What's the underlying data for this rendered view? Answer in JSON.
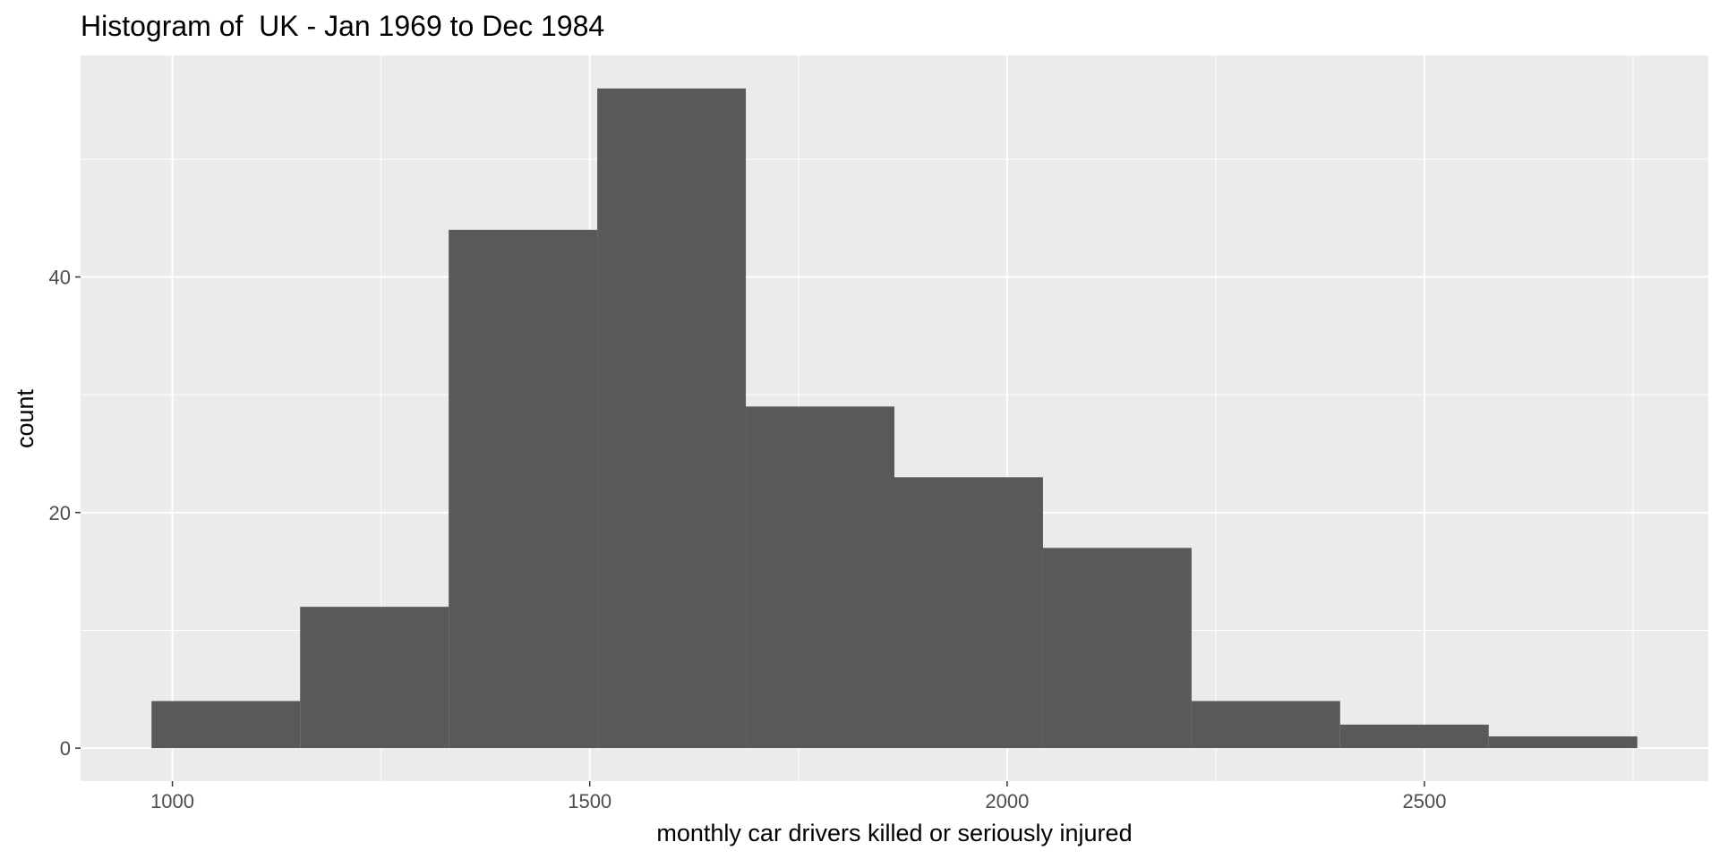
{
  "chart_data": {
    "type": "bar",
    "title": "Histogram of  UK - Jan 1969 to Dec 1984",
    "xlabel": "monthly car drivers killed or seriously injured",
    "ylabel": "count",
    "bins": [
      {
        "x0": 975,
        "x1": 1153,
        "count": 4
      },
      {
        "x0": 1153,
        "x1": 1331,
        "count": 12
      },
      {
        "x0": 1331,
        "x1": 1509,
        "count": 44
      },
      {
        "x0": 1509,
        "x1": 1687,
        "count": 56
      },
      {
        "x0": 1687,
        "x1": 1865,
        "count": 29
      },
      {
        "x0": 1865,
        "x1": 2043,
        "count": 23
      },
      {
        "x0": 2043,
        "x1": 2221,
        "count": 17
      },
      {
        "x0": 2221,
        "x1": 2399,
        "count": 4
      },
      {
        "x0": 2399,
        "x1": 2577,
        "count": 2
      },
      {
        "x0": 2577,
        "x1": 2755,
        "count": 1
      }
    ],
    "x_ticks": [
      1000,
      1500,
      2000,
      2500
    ],
    "y_ticks": [
      0,
      20,
      40
    ],
    "xlim": [
      890,
      2840
    ],
    "ylim": [
      -2.8,
      58.8
    ],
    "grid": true,
    "colors": {
      "bar": "#595959",
      "panel": "#ebebeb",
      "grid": "#ffffff",
      "tick_text": "#4d4d4d",
      "tick_mark": "#333333"
    }
  }
}
